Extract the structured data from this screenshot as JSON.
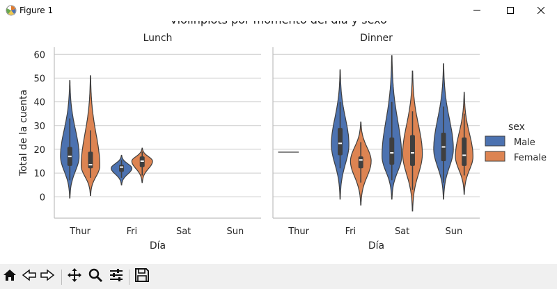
{
  "window": {
    "title": "Figure 1",
    "icon": "matplotlib-icon",
    "controls": [
      "minimize-icon",
      "maximize-icon",
      "close-icon"
    ]
  },
  "figure": {
    "suptitle": "Violinplots por momento del día y sexo"
  },
  "toolbar": {
    "tools": [
      "home-icon",
      "back-icon",
      "forward-icon",
      "pan-icon",
      "zoom-icon",
      "configure-subplots-icon",
      "save-icon"
    ]
  },
  "colors": {
    "male": "#4c72b0",
    "female": "#dd8452",
    "grid": "#cccccc",
    "edge": "#3f3f3f"
  },
  "chart_data": [
    {
      "type": "violin",
      "title": "Lunch",
      "xlabel": "Día",
      "ylabel": "Total de la cuenta",
      "categories": [
        "Thur",
        "Fri",
        "Sat",
        "Sun"
      ],
      "ylim": [
        -9,
        63
      ],
      "yticks": [
        0,
        10,
        20,
        30,
        40,
        50,
        60
      ],
      "grid": "horizontal",
      "series": [
        {
          "name": "Male",
          "color": "#4c72b0",
          "violins": [
            {
              "category": "Thur",
              "min": -0.5,
              "max": 49,
              "q1": 13,
              "median": 17,
              "q3": 21,
              "whisker_low": 7,
              "whisker_high": 33,
              "mode": 17,
              "width": 0.9
            },
            {
              "category": "Fri",
              "min": 5,
              "max": 17.5,
              "q1": 10.5,
              "median": 12.5,
              "q3": 13.5,
              "whisker_low": 8,
              "whisker_high": 15.5,
              "mode": 12,
              "width": 1.0
            }
          ]
        },
        {
          "name": "Female",
          "color": "#dd8452",
          "violins": [
            {
              "category": "Thur",
              "min": 0.5,
              "max": 51,
              "q1": 12,
              "median": 13.5,
              "q3": 19,
              "whisker_low": 8,
              "whisker_high": 28,
              "mode": 13,
              "width": 0.9
            },
            {
              "category": "Fri",
              "min": 6,
              "max": 20.5,
              "q1": 12.5,
              "median": 15,
              "q3": 17,
              "whisker_low": 9,
              "whisker_high": 19,
              "mode": 15,
              "width": 1.0
            }
          ]
        }
      ]
    },
    {
      "type": "violin",
      "title": "Dinner",
      "xlabel": "Día",
      "ylabel": "",
      "categories": [
        "Thur",
        "Fri",
        "Sat",
        "Sun"
      ],
      "ylim": [
        -9,
        63
      ],
      "grid": "horizontal",
      "series": [
        {
          "name": "Male",
          "color": "#4c72b0",
          "violins": [
            {
              "category": "Thur",
              "min": 18.8,
              "max": 18.8,
              "q1": 18.8,
              "median": 18.8,
              "q3": 18.8,
              "whisker_low": 18.8,
              "whisker_high": 18.8,
              "mode": 18.8,
              "width": 0,
              "single_value": true
            },
            {
              "category": "Fri",
              "min": -1,
              "max": 53.5,
              "q1": 17.5,
              "median": 22.5,
              "q3": 29,
              "whisker_low": 12,
              "whisker_high": 40,
              "mode": 22,
              "width": 0.85
            },
            {
              "category": "Sat",
              "min": -1,
              "max": 59.5,
              "q1": 13.5,
              "median": 18.5,
              "q3": 25,
              "whisker_low": 7,
              "whisker_high": 40,
              "mode": 17,
              "width": 0.95
            },
            {
              "category": "Sun",
              "min": -1,
              "max": 56,
              "q1": 15,
              "median": 21,
              "q3": 27,
              "whisker_low": 6,
              "whisker_high": 38,
              "mode": 20,
              "width": 0.95
            }
          ]
        },
        {
          "name": "Female",
          "color": "#dd8452",
          "violins": [
            {
              "category": "Fri",
              "min": -3.5,
              "max": 31.5,
              "q1": 12,
              "median": 15.5,
              "q3": 17,
              "whisker_low": 6,
              "whisker_high": 23,
              "mode": 15,
              "width": 1.0
            },
            {
              "category": "Sat",
              "min": -6,
              "max": 53,
              "q1": 13,
              "median": 18.5,
              "q3": 26,
              "whisker_low": 3,
              "whisker_high": 36,
              "mode": 18,
              "width": 0.95
            },
            {
              "category": "Sun",
              "min": 1,
              "max": 44,
              "q1": 13,
              "median": 17.5,
              "q3": 25,
              "whisker_low": 9,
              "whisker_high": 35,
              "mode": 17,
              "width": 0.85
            }
          ]
        }
      ]
    }
  ],
  "legend": {
    "title": "sex",
    "placement": "right",
    "entries": [
      {
        "label": "Male",
        "color": "#4c72b0"
      },
      {
        "label": "Female",
        "color": "#dd8452"
      }
    ]
  }
}
